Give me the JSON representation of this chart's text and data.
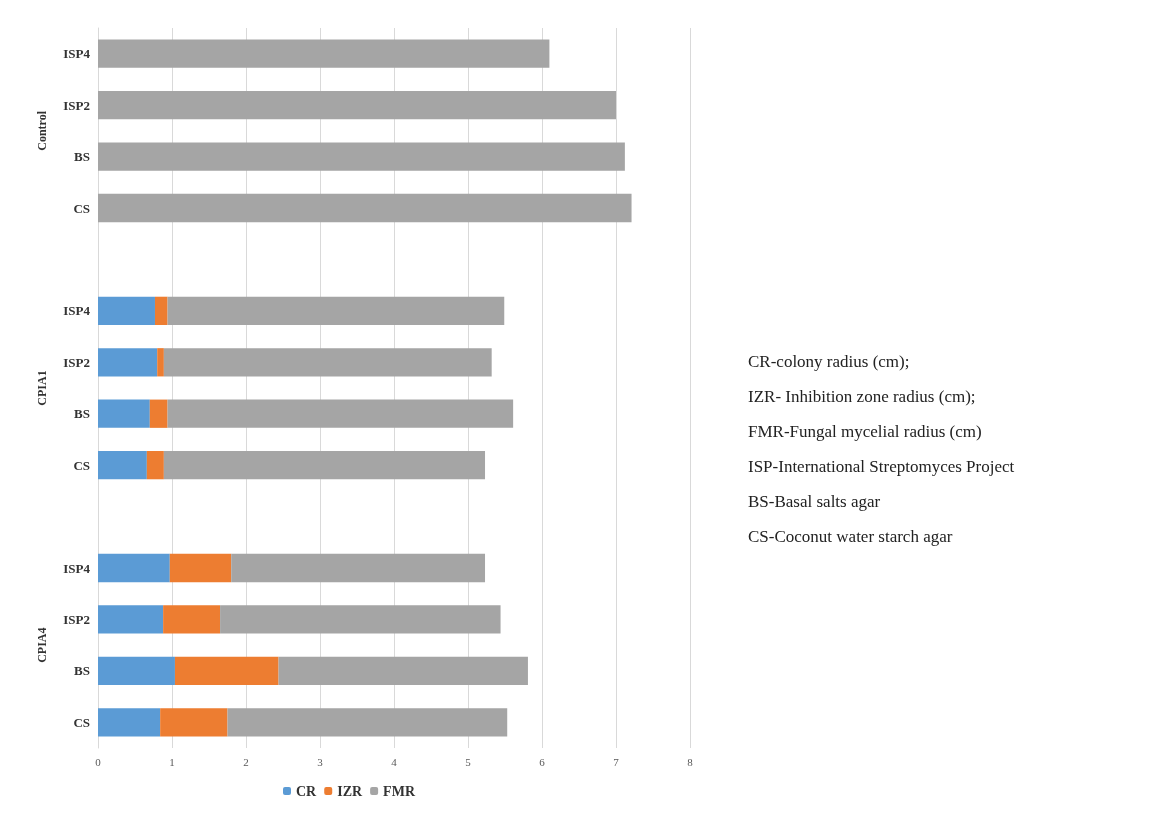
{
  "chart_data": {
    "type": "bar",
    "orientation": "horizontal",
    "stacked": true,
    "categories": [
      "ISP4",
      "ISP2",
      "BS",
      "CS",
      null,
      "ISP4",
      "ISP2",
      "BS",
      "CS",
      null,
      "ISP4",
      "ISP2",
      "BS",
      "CS"
    ],
    "series": [
      {
        "name": "CR",
        "color": "#5b9bd5",
        "values": [
          0,
          0,
          0,
          0,
          null,
          0.77,
          0.8,
          0.7,
          0.66,
          null,
          0.97,
          0.88,
          1.04,
          0.84
        ]
      },
      {
        "name": "IZR",
        "color": "#ed7d31",
        "values": [
          0,
          0,
          0,
          0,
          null,
          0.17,
          0.09,
          0.24,
          0.23,
          null,
          0.83,
          0.77,
          1.4,
          0.91
        ]
      },
      {
        "name": "FMR",
        "color": "#a5a5a5",
        "values": [
          6.1,
          7.0,
          7.12,
          7.21,
          null,
          4.55,
          4.43,
          4.67,
          4.34,
          null,
          3.43,
          3.79,
          3.37,
          3.78
        ]
      }
    ],
    "xlim": [
      0,
      8
    ],
    "xticks": [
      0,
      1,
      2,
      3,
      4,
      5,
      6,
      7,
      8
    ],
    "grid": "x",
    "legend": "bottom",
    "annotations": [
      "Control",
      "CPIA1",
      "CPIA4",
      "CR-colony radius (cm);",
      "IZR- Inhibition zone radius (cm);",
      "FMR-Fungal mycelial radius (cm)",
      "ISP-International Streptomyces Project",
      "BS-Basal salts agar",
      "CS-Coconut water starch agar"
    ]
  }
}
